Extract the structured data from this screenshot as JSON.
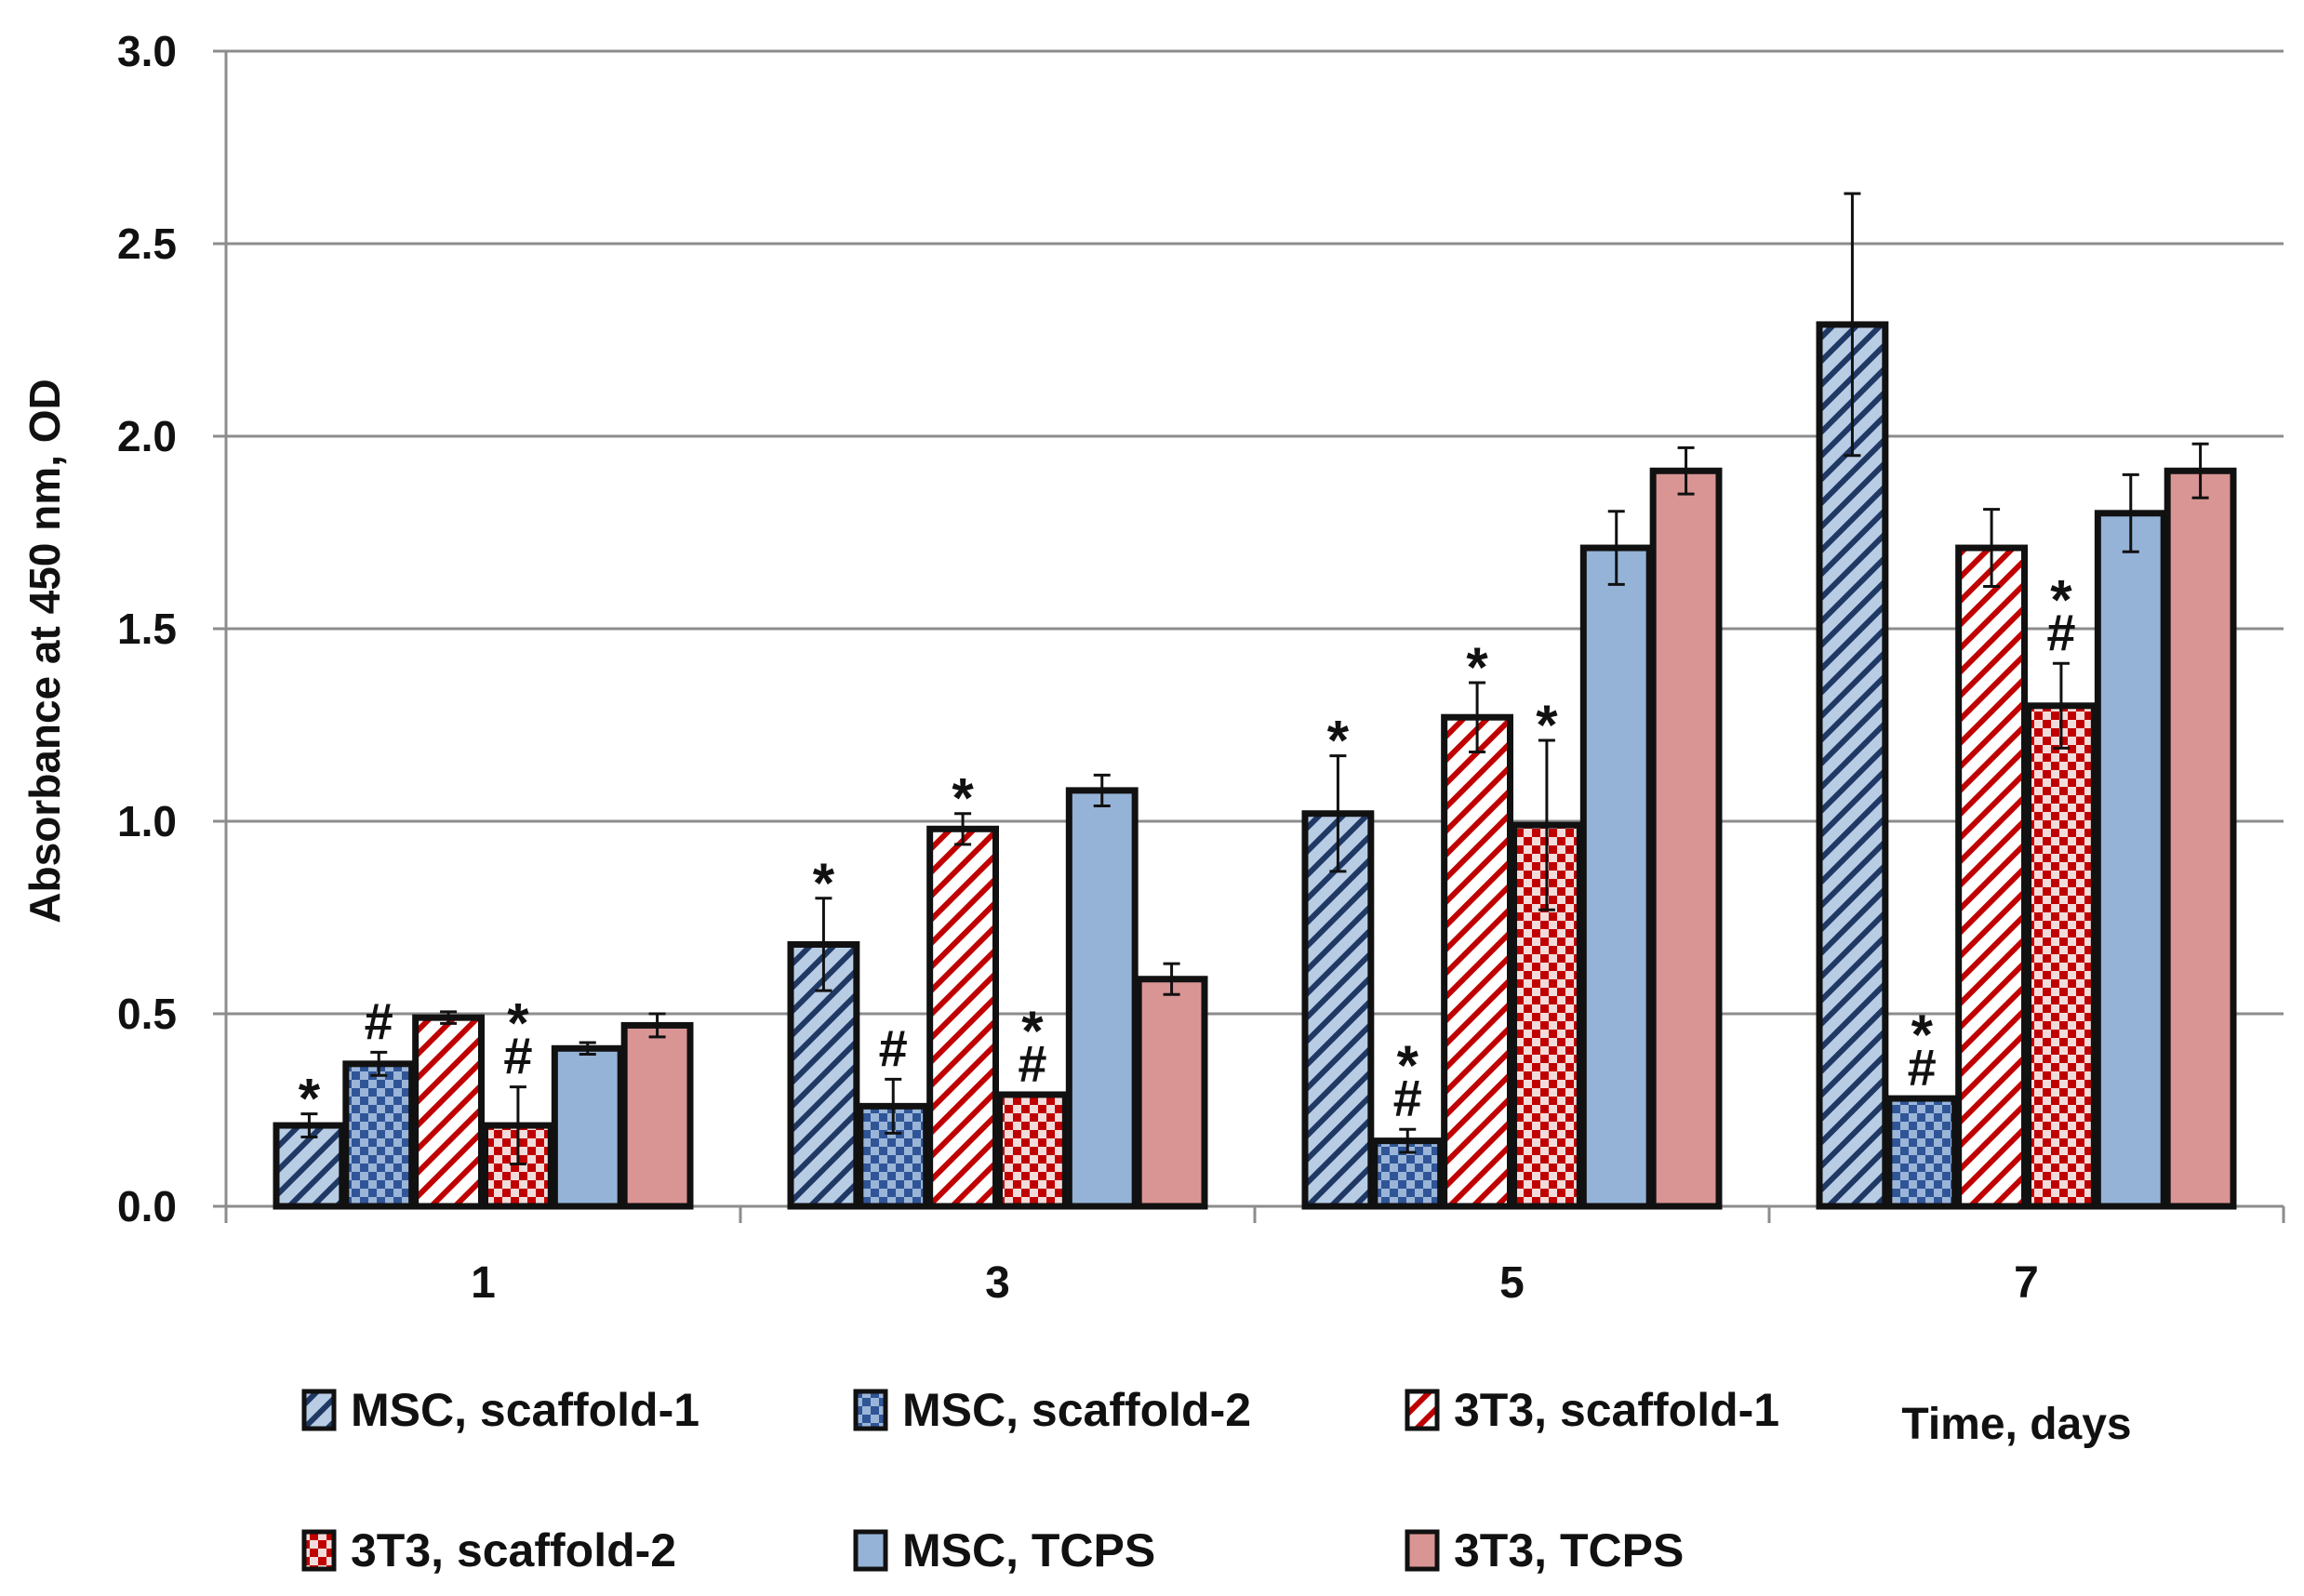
{
  "chart_data": {
    "type": "bar",
    "title": "",
    "xlabel": "Time, days",
    "ylabel": "Absorbance at 450 nm, OD",
    "categories": [
      "1",
      "3",
      "5",
      "7"
    ],
    "ylim": [
      0,
      3.0
    ],
    "yticks": [
      "0.0",
      "0.5",
      "1.0",
      "1.5",
      "2.0",
      "2.5",
      "3.0"
    ],
    "grid": true,
    "legend_position": "bottom",
    "series": [
      {
        "name": "MSC, scaffold-1",
        "color": "#b8cce4",
        "stripe": "#1f3864",
        "pattern": "diag",
        "values": [
          0.21,
          0.68,
          1.02,
          2.29
        ],
        "errors": [
          0.03,
          0.12,
          0.15,
          0.34
        ],
        "annotations": [
          "*",
          "*",
          "*",
          ""
        ]
      },
      {
        "name": "MSC, scaffold-2",
        "color": "#9ab5d8",
        "stripe": "#2f5597",
        "pattern": "check",
        "values": [
          0.37,
          0.26,
          0.17,
          0.28
        ],
        "errors": [
          0.03,
          0.07,
          0.03,
          0
        ],
        "annotations": [
          "#",
          "#",
          "*\n#",
          "*\n#"
        ]
      },
      {
        "name": "3T3, scaffold-1",
        "color": "#ffffff",
        "stripe": "#c00000",
        "pattern": "diag",
        "values": [
          0.49,
          0.98,
          1.27,
          1.71
        ],
        "errors": [
          0.015,
          0.04,
          0.09,
          0.1
        ],
        "annotations": [
          "",
          "*",
          "*",
          ""
        ]
      },
      {
        "name": "3T3, scaffold-2",
        "color": "#f2dcdb",
        "stripe": "#c00000",
        "pattern": "check",
        "values": [
          0.21,
          0.29,
          0.99,
          1.3
        ],
        "errors": [
          0.1,
          0,
          0.22,
          0.11
        ],
        "annotations": [
          "*\n#",
          "*\n#",
          "*",
          "*\n#"
        ]
      },
      {
        "name": "MSC, TCPS",
        "color": "#95b3d7",
        "stripe": "",
        "pattern": "solid",
        "values": [
          0.41,
          1.08,
          1.71,
          1.8
        ],
        "errors": [
          0.015,
          0.04,
          0.095,
          0.1
        ],
        "annotations": [
          "",
          "",
          "",
          ""
        ]
      },
      {
        "name": "3T3, TCPS",
        "color": "#d99594",
        "stripe": "",
        "pattern": "solid",
        "values": [
          0.47,
          0.59,
          1.91,
          1.91
        ],
        "errors": [
          0.03,
          0.04,
          0.06,
          0.07
        ],
        "annotations": [
          "",
          "",
          "",
          ""
        ]
      }
    ]
  }
}
